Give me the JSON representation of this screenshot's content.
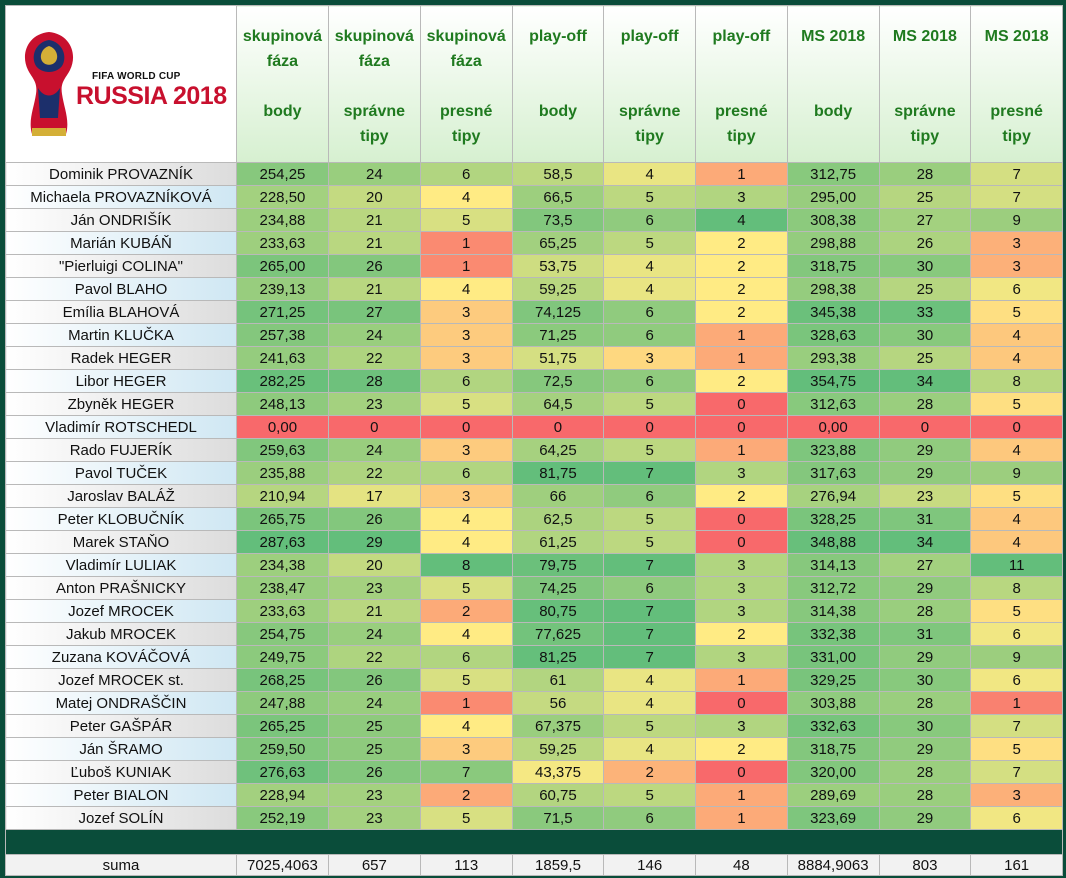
{
  "logo": {
    "top_text": "FIFA WORLD CUP",
    "main_text": "RUSSIA 2018"
  },
  "headers": [
    [
      "skupinová",
      "fáza",
      "",
      "body"
    ],
    [
      "skupinová",
      "fáza",
      "",
      "správne",
      "tipy"
    ],
    [
      "skupinová",
      "fáza",
      "",
      "presné",
      "tipy"
    ],
    [
      "play-off",
      "",
      "",
      "body"
    ],
    [
      "play-off",
      "",
      "",
      "správne",
      "tipy"
    ],
    [
      "play-off",
      "",
      "",
      "presné",
      "tipy"
    ],
    [
      "MS 2018",
      "",
      "",
      "body"
    ],
    [
      "MS 2018",
      "",
      "",
      "správne",
      "tipy"
    ],
    [
      "MS 2018",
      "",
      "",
      "presné",
      "tipy"
    ]
  ],
  "rows": [
    {
      "name": "Dominik PROVAZNÍK",
      "values": [
        "254,25",
        "24",
        "6",
        "58,5",
        "4",
        "1",
        "312,75",
        "28",
        "7"
      ]
    },
    {
      "name": "Michaela PROVAZNÍKOVÁ",
      "values": [
        "228,50",
        "20",
        "4",
        "66,5",
        "5",
        "3",
        "295,00",
        "25",
        "7"
      ]
    },
    {
      "name": "Ján ONDRIŠÍK",
      "values": [
        "234,88",
        "21",
        "5",
        "73,5",
        "6",
        "4",
        "308,38",
        "27",
        "9"
      ]
    },
    {
      "name": "Marián KUBÁŇ",
      "values": [
        "233,63",
        "21",
        "1",
        "65,25",
        "5",
        "2",
        "298,88",
        "26",
        "3"
      ]
    },
    {
      "name": "\"Pierluigi COLINA\"",
      "values": [
        "265,00",
        "26",
        "1",
        "53,75",
        "4",
        "2",
        "318,75",
        "30",
        "3"
      ]
    },
    {
      "name": "Pavol BLAHO",
      "values": [
        "239,13",
        "21",
        "4",
        "59,25",
        "4",
        "2",
        "298,38",
        "25",
        "6"
      ]
    },
    {
      "name": "Emília BLAHOVÁ",
      "values": [
        "271,25",
        "27",
        "3",
        "74,125",
        "6",
        "2",
        "345,38",
        "33",
        "5"
      ]
    },
    {
      "name": "Martin KLUČKA",
      "values": [
        "257,38",
        "24",
        "3",
        "71,25",
        "6",
        "1",
        "328,63",
        "30",
        "4"
      ]
    },
    {
      "name": "Radek HEGER",
      "values": [
        "241,63",
        "22",
        "3",
        "51,75",
        "3",
        "1",
        "293,38",
        "25",
        "4"
      ]
    },
    {
      "name": "Libor HEGER",
      "values": [
        "282,25",
        "28",
        "6",
        "72,5",
        "6",
        "2",
        "354,75",
        "34",
        "8"
      ]
    },
    {
      "name": "Zbyněk HEGER",
      "values": [
        "248,13",
        "23",
        "5",
        "64,5",
        "5",
        "0",
        "312,63",
        "28",
        "5"
      ]
    },
    {
      "name": "Vladimír ROTSCHEDL",
      "values": [
        "0,00",
        "0",
        "0",
        "0",
        "0",
        "0",
        "0,00",
        "0",
        "0"
      ]
    },
    {
      "name": "Rado FUJERÍK",
      "values": [
        "259,63",
        "24",
        "3",
        "64,25",
        "5",
        "1",
        "323,88",
        "29",
        "4"
      ]
    },
    {
      "name": "Pavol TUČEK",
      "values": [
        "235,88",
        "22",
        "6",
        "81,75",
        "7",
        "3",
        "317,63",
        "29",
        "9"
      ]
    },
    {
      "name": "Jaroslav BALÁŽ",
      "values": [
        "210,94",
        "17",
        "3",
        "66",
        "6",
        "2",
        "276,94",
        "23",
        "5"
      ]
    },
    {
      "name": "Peter KLOBUČNÍK",
      "values": [
        "265,75",
        "26",
        "4",
        "62,5",
        "5",
        "0",
        "328,25",
        "31",
        "4"
      ]
    },
    {
      "name": "Marek STAŇO",
      "values": [
        "287,63",
        "29",
        "4",
        "61,25",
        "5",
        "0",
        "348,88",
        "34",
        "4"
      ]
    },
    {
      "name": "Vladimír LULIAK",
      "values": [
        "234,38",
        "20",
        "8",
        "79,75",
        "7",
        "3",
        "314,13",
        "27",
        "11"
      ]
    },
    {
      "name": "Anton PRAŠNICKY",
      "values": [
        "238,47",
        "23",
        "5",
        "74,25",
        "6",
        "3",
        "312,72",
        "29",
        "8"
      ]
    },
    {
      "name": "Jozef MROCEK",
      "values": [
        "233,63",
        "21",
        "2",
        "80,75",
        "7",
        "3",
        "314,38",
        "28",
        "5"
      ]
    },
    {
      "name": "Jakub MROCEK",
      "values": [
        "254,75",
        "24",
        "4",
        "77,625",
        "7",
        "2",
        "332,38",
        "31",
        "6"
      ]
    },
    {
      "name": "Zuzana KOVÁČOVÁ",
      "values": [
        "249,75",
        "22",
        "6",
        "81,25",
        "7",
        "3",
        "331,00",
        "29",
        "9"
      ]
    },
    {
      "name": "Jozef MROCEK st.",
      "values": [
        "268,25",
        "26",
        "5",
        "61",
        "4",
        "1",
        "329,25",
        "30",
        "6"
      ]
    },
    {
      "name": "Matej ONDRAŠČIN",
      "values": [
        "247,88",
        "24",
        "1",
        "56",
        "4",
        "0",
        "303,88",
        "28",
        "1"
      ]
    },
    {
      "name": "Peter GAŠPÁR",
      "values": [
        "265,25",
        "25",
        "4",
        "67,375",
        "5",
        "3",
        "332,63",
        "30",
        "7"
      ]
    },
    {
      "name": "Ján ŠRAMO",
      "values": [
        "259,50",
        "25",
        "3",
        "59,25",
        "4",
        "2",
        "318,75",
        "29",
        "5"
      ]
    },
    {
      "name": "Ľuboš KUNIAK",
      "values": [
        "276,63",
        "26",
        "7",
        "43,375",
        "2",
        "0",
        "320,00",
        "28",
        "7"
      ]
    },
    {
      "name": "Peter BIALON",
      "values": [
        "228,94",
        "23",
        "2",
        "60,75",
        "5",
        "1",
        "289,69",
        "28",
        "3"
      ]
    },
    {
      "name": "Jozef SOLÍN",
      "values": [
        "252,19",
        "23",
        "5",
        "71,5",
        "6",
        "1",
        "323,69",
        "29",
        "6"
      ]
    }
  ],
  "sum": {
    "label": "suma",
    "values": [
      "7025,4063",
      "657",
      "113",
      "1859,5",
      "146",
      "48",
      "8884,9063",
      "803",
      "161"
    ]
  },
  "colors": {
    "scale_low": "#f8696b",
    "scale_mid": "#ffeb84",
    "scale_high": "#63be7b",
    "name_cell_a": "#dcdcdc",
    "name_cell_b": "#cfe7f3",
    "header_text": "#1f7a1f",
    "frame": "#0a4d3a"
  }
}
